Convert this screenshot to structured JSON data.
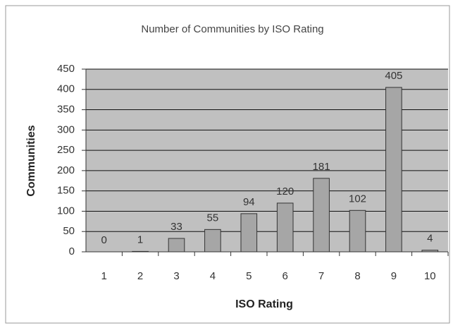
{
  "chart_data": {
    "type": "bar",
    "title": "Number of Communities by ISO Rating",
    "x_label": "ISO Rating",
    "y_label": "Communities",
    "categories": [
      "1",
      "2",
      "3",
      "4",
      "5",
      "6",
      "7",
      "8",
      "9",
      "10"
    ],
    "values": [
      0,
      1,
      33,
      55,
      94,
      120,
      181,
      102,
      405,
      4
    ],
    "color": "#a6a6a6",
    "plot_background": "#c0c0c0",
    "ylim": [
      0,
      450
    ],
    "yticks": [
      0,
      50,
      100,
      150,
      200,
      250,
      300,
      350,
      400,
      450
    ],
    "grid": true
  }
}
